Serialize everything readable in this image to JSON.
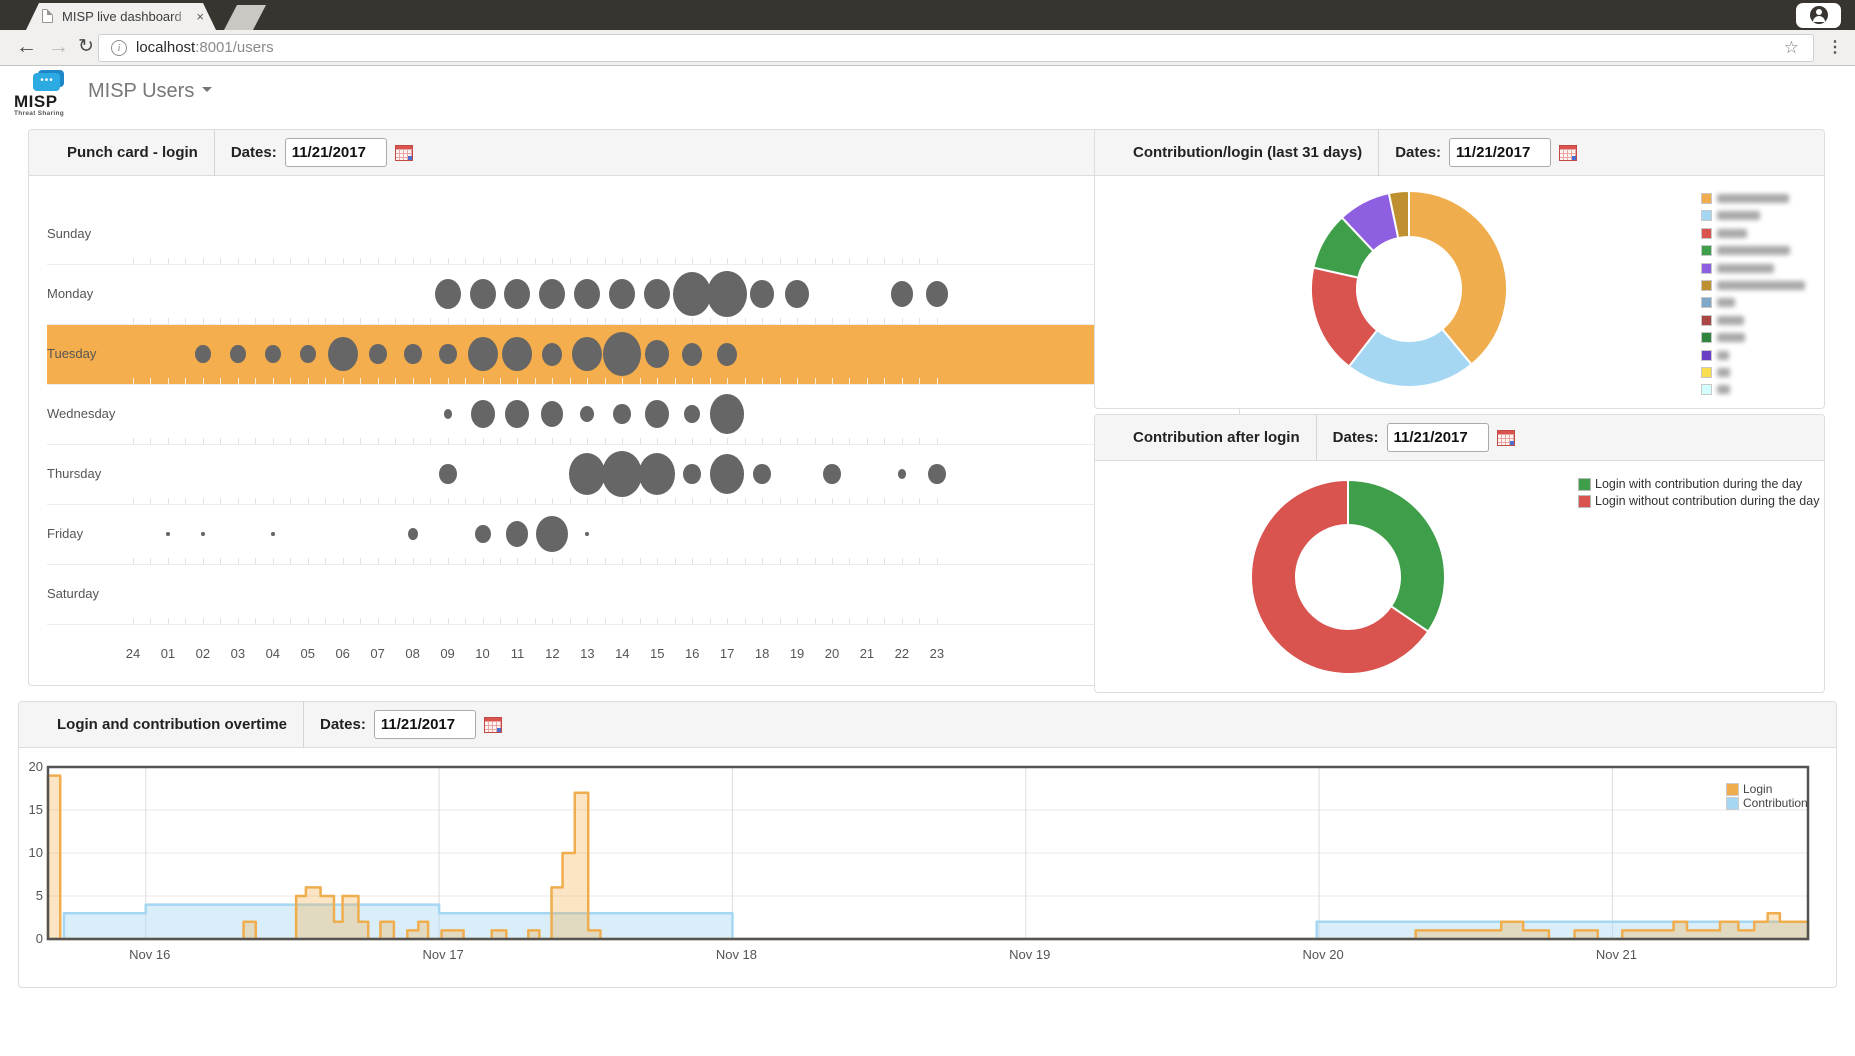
{
  "browser": {
    "tab_title": "MISP live dashboard",
    "url_host": "localhost",
    "url_rest": ":8001/users",
    "back": "←",
    "forward": "→",
    "reload": "↻",
    "star": "☆",
    "kebab": "⋮",
    "close": "×",
    "info": "i"
  },
  "app": {
    "logo_word": "MISP",
    "logo_sub": "Threat Sharing",
    "nav_title": "MISP Users",
    "bubble_dots": "•••"
  },
  "panels": {
    "punch": {
      "title": "Punch card - login",
      "dates_label": "Dates:",
      "date": "11/21/2017"
    },
    "contrib_login": {
      "title": "Contribution/login (last 31 days)",
      "dates_label": "Dates:",
      "date": "11/21/2017"
    },
    "contrib_after": {
      "title": "Contribution after login",
      "dates_label": "Dates:",
      "date": "11/21/2017"
    },
    "overtime": {
      "title": "Login and contribution overtime",
      "dates_label": "Dates:",
      "date": "11/21/2017"
    }
  },
  "chart_data": [
    {
      "type": "punchcard",
      "title": "Punch card - login",
      "hours": [
        "24",
        "01",
        "02",
        "03",
        "04",
        "05",
        "06",
        "07",
        "08",
        "09",
        "10",
        "11",
        "12",
        "13",
        "14",
        "15",
        "16",
        "17",
        "18",
        "19",
        "20",
        "21",
        "22",
        "23"
      ],
      "days": [
        "Sunday",
        "Monday",
        "Tuesday",
        "Wednesday",
        "Thursday",
        "Friday",
        "Saturday"
      ],
      "highlighted_day": "Tuesday",
      "highlight_color": "#f4ae4d",
      "dot_color": "#666666",
      "points": {
        "Sunday": [],
        "Monday": [
          [
            9,
            13
          ],
          [
            10,
            13
          ],
          [
            11,
            13
          ],
          [
            12,
            13
          ],
          [
            13,
            13
          ],
          [
            14,
            13
          ],
          [
            15,
            13
          ],
          [
            16,
            19
          ],
          [
            17,
            20
          ],
          [
            18,
            12
          ],
          [
            19,
            12
          ],
          [
            22,
            11
          ],
          [
            23,
            11
          ]
        ],
        "Tuesday": [
          [
            2,
            8
          ],
          [
            3,
            8
          ],
          [
            4,
            8
          ],
          [
            5,
            8
          ],
          [
            6,
            15
          ],
          [
            7,
            9
          ],
          [
            8,
            9
          ],
          [
            9,
            9
          ],
          [
            10,
            15
          ],
          [
            11,
            15
          ],
          [
            12,
            10
          ],
          [
            13,
            15
          ],
          [
            14,
            19
          ],
          [
            15,
            12
          ],
          [
            16,
            10
          ],
          [
            17,
            10
          ]
        ],
        "Wednesday": [
          [
            9,
            4
          ],
          [
            10,
            12
          ],
          [
            11,
            12
          ],
          [
            12,
            11
          ],
          [
            13,
            7
          ],
          [
            14,
            9
          ],
          [
            15,
            12
          ],
          [
            16,
            8
          ],
          [
            17,
            17
          ]
        ],
        "Thursday": [
          [
            9,
            9
          ],
          [
            13,
            18
          ],
          [
            14,
            20
          ],
          [
            15,
            18
          ],
          [
            16,
            9
          ],
          [
            17,
            17
          ],
          [
            18,
            9
          ],
          [
            20,
            9
          ],
          [
            22,
            4
          ],
          [
            23,
            9
          ]
        ],
        "Friday": [
          [
            1,
            2
          ],
          [
            2,
            2
          ],
          [
            4,
            2
          ],
          [
            8,
            5
          ],
          [
            10,
            8
          ],
          [
            11,
            11
          ],
          [
            12,
            16
          ],
          [
            13,
            2
          ]
        ],
        "Saturday": []
      }
    },
    {
      "type": "pie",
      "title": "Contribution/login (last 31 days)",
      "donut": true,
      "values": [
        39,
        21.5,
        18,
        9.5,
        8.7,
        3.3
      ],
      "colors": [
        "#f0ad4e",
        "#a5d7f3",
        "#d9534f",
        "#3f9e4a",
        "#8e5fe0",
        "#be9030"
      ],
      "labels_blurred": true,
      "legend": [
        {
          "color": "#f0ad4e",
          "blur_width": 72
        },
        {
          "color": "#a5d7f3",
          "blur_width": 43
        },
        {
          "color": "#d9534f",
          "blur_width": 30
        },
        {
          "color": "#3f9e4a",
          "blur_width": 73
        },
        {
          "color": "#8e5fe0",
          "blur_width": 57
        },
        {
          "color": "#be9030",
          "blur_width": 88
        },
        {
          "color": "#7fa8c9",
          "blur_width": 18
        },
        {
          "color": "#aa4744",
          "blur_width": 27
        },
        {
          "color": "#2f8540",
          "blur_width": 28
        },
        {
          "color": "#6b3fc4",
          "blur_width": 12
        },
        {
          "color": "#fade52",
          "blur_width": 13
        },
        {
          "color": "#d4ffff",
          "blur_width": 13
        }
      ]
    },
    {
      "type": "pie",
      "title": "Contribution after login",
      "donut": true,
      "labels": [
        "Login with contribution during the day",
        "Login without contribution during the day"
      ],
      "values": [
        34.5,
        65.5
      ],
      "colors": [
        "#3f9e4a",
        "#d9534f"
      ]
    },
    {
      "type": "area",
      "title": "Login and contribution overtime",
      "ylim": [
        0,
        20
      ],
      "yticks": [
        0,
        5,
        10,
        15,
        20
      ],
      "total_hours": 144,
      "x_ticks": {
        "t": [
          8,
          32,
          56,
          80,
          104,
          128
        ],
        "labels": [
          "Nov 16",
          "Nov 17",
          "Nov 18",
          "Nov 19",
          "Nov 20",
          "Nov 21"
        ]
      },
      "legend_position": "top-right",
      "series": [
        {
          "name": "Contribution",
          "stroke": "#a6d7f2",
          "fill": "rgba(166,215,242,0.42)",
          "steps": [
            [
              0,
              0
            ],
            [
              1.3,
              3
            ],
            [
              8,
              4
            ],
            [
              32,
              3
            ],
            [
              56,
              0
            ],
            [
              103.8,
              2
            ]
          ]
        },
        {
          "name": "Login",
          "stroke": "#efad4d",
          "fill": "rgba(243,175,78,0.33)",
          "steps": [
            [
              0,
              19
            ],
            [
              1,
              0
            ],
            [
              16,
              2
            ],
            [
              17,
              0
            ],
            [
              20.3,
              5
            ],
            [
              21.1,
              6
            ],
            [
              22.3,
              5
            ],
            [
              23.4,
              2
            ],
            [
              24.1,
              5
            ],
            [
              25.4,
              2
            ],
            [
              26.2,
              0
            ],
            [
              27.2,
              2
            ],
            [
              28.3,
              0
            ],
            [
              29.4,
              1
            ],
            [
              30.3,
              2
            ],
            [
              31.1,
              0
            ],
            [
              32.2,
              1
            ],
            [
              34,
              0
            ],
            [
              36.3,
              1
            ],
            [
              37.5,
              0
            ],
            [
              39.3,
              1
            ],
            [
              40.2,
              0
            ],
            [
              41.2,
              6
            ],
            [
              42.1,
              10
            ],
            [
              43.1,
              17
            ],
            [
              44.2,
              1
            ],
            [
              45.2,
              0
            ],
            [
              111.9,
              1
            ],
            [
              118.9,
              2
            ],
            [
              120.7,
              1
            ],
            [
              122.8,
              0
            ],
            [
              124.9,
              1
            ],
            [
              126.8,
              0
            ],
            [
              128.8,
              1
            ],
            [
              133,
              2
            ],
            [
              134.1,
              1
            ],
            [
              136.8,
              2
            ],
            [
              138.3,
              1
            ],
            [
              139.6,
              2
            ],
            [
              140.7,
              3
            ],
            [
              141.7,
              2
            ]
          ]
        }
      ]
    }
  ]
}
